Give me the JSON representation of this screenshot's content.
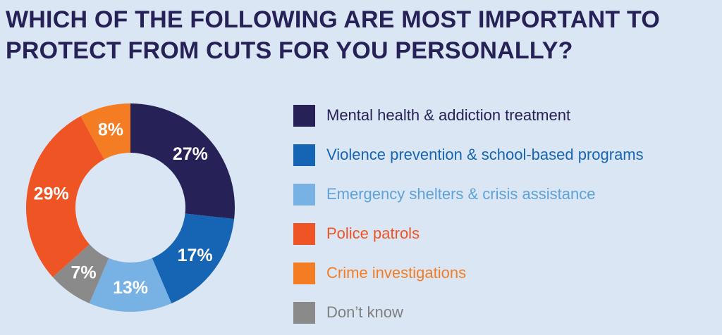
{
  "title": {
    "line1": "WHICH OF THE FOLLOWING ARE MOST IMPORTANT TO",
    "line2": "PROTECT FROM CUTS FOR YOU PERSONALLY?"
  },
  "colors": {
    "background": "#dbe6f4",
    "title": "#262157"
  },
  "chart_data": {
    "type": "pie",
    "variant": "donut",
    "title": "WHICH OF THE FOLLOWING ARE MOST IMPORTANT TO PROTECT FROM CUTS FOR YOU PERSONALLY?",
    "legend_position": "right",
    "slices": [
      {
        "name": "Mental health & addiction treatment",
        "value": 27,
        "label": "27%",
        "color": "#262157",
        "text_color": "#262157"
      },
      {
        "name": "Violence prevention & school-based programs",
        "value": 17,
        "label": "17%",
        "color": "#1665b4",
        "text_color": "#1665b4"
      },
      {
        "name": "Emergency shelters & crisis assistance",
        "value": 13,
        "label": "13%",
        "color": "#78b1e3",
        "text_color": "#5ea2d8"
      },
      {
        "name": "Police patrols",
        "value": 29,
        "label": "29%",
        "color": "#ef5424",
        "text_color": "#ef5424"
      },
      {
        "name": "Crime investigations",
        "value": 8,
        "label": "8%",
        "color": "#f47c22",
        "text_color": "#f47c22"
      },
      {
        "name": "Don’t know",
        "value": 7,
        "label": "7%",
        "color": "#8a8a8a",
        "text_color": "#7f7f7f"
      }
    ],
    "slice_order_clockwise_from_top": [
      "Mental health & addiction treatment",
      "Violence prevention & school-based programs",
      "Emergency shelters & crisis assistance",
      "Don’t know",
      "Police patrols",
      "Crime investigations"
    ]
  }
}
